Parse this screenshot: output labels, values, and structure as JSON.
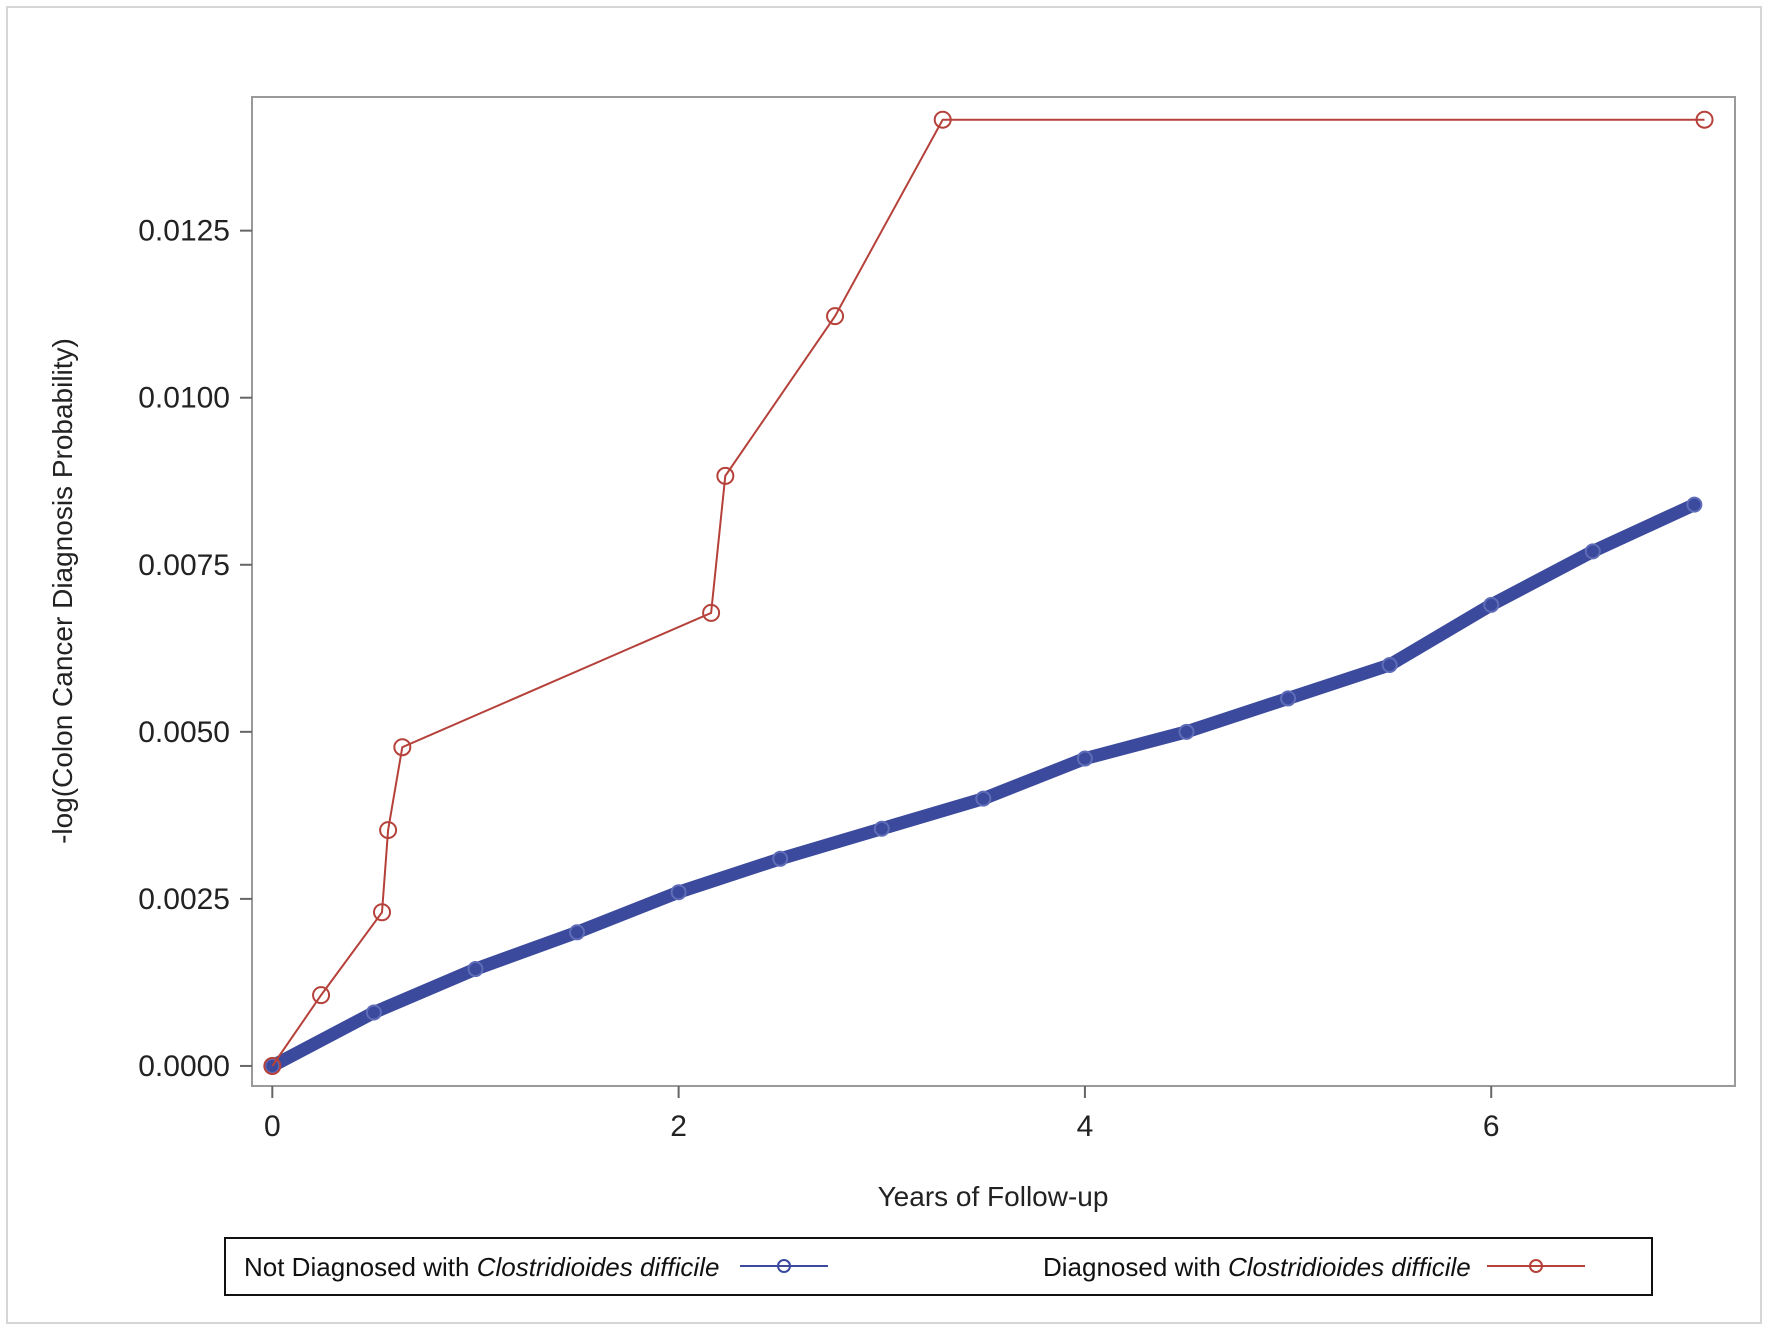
{
  "chart_data": {
    "type": "line",
    "xlabel": "Years of Follow-up",
    "ylabel": "-log(Colon Cancer Diagnosis Probability)",
    "xlim": [
      -0.1,
      7.2
    ],
    "ylim": [
      -0.0003,
      0.0145
    ],
    "xticks": [
      {
        "value": 0,
        "label": "0"
      },
      {
        "value": 2,
        "label": "2"
      },
      {
        "value": 4,
        "label": "4"
      },
      {
        "value": 6,
        "label": "6"
      }
    ],
    "yticks": [
      {
        "value": 0.0,
        "label": "0.0000"
      },
      {
        "value": 0.0025,
        "label": "0.0025"
      },
      {
        "value": 0.005,
        "label": "0.0050"
      },
      {
        "value": 0.0075,
        "label": "0.0075"
      },
      {
        "value": 0.01,
        "label": "0.0100"
      },
      {
        "value": 0.0125,
        "label": "0.0125"
      }
    ],
    "grid": false,
    "legend_position": "bottom",
    "series": [
      {
        "name_plain": "Not Diagnosed with ",
        "name_italic": "Clostridioides difficile",
        "color": "#3b4a9c",
        "marker": "circle",
        "style": "dense",
        "x": [
          0,
          0.5,
          1.0,
          1.5,
          2.0,
          2.5,
          3.0,
          3.5,
          4.0,
          4.5,
          5.0,
          5.5,
          6.0,
          6.5,
          7.0
        ],
        "y": [
          0,
          0.0008,
          0.00145,
          0.002,
          0.0026,
          0.0031,
          0.00355,
          0.004,
          0.0046,
          0.005,
          0.0055,
          0.006,
          0.0069,
          0.0077,
          0.0084
        ]
      },
      {
        "name_plain": "Diagnosed with ",
        "name_italic": "Clostridioides difficile",
        "color": "#b5413a",
        "marker": "circle",
        "style": "markers",
        "x": [
          0,
          0.24,
          0.54,
          0.57,
          0.64,
          2.16,
          2.23,
          2.77,
          3.3,
          7.05
        ],
        "y": [
          0,
          0.00106,
          0.0023,
          0.00353,
          0.00477,
          0.00678,
          0.00883,
          0.01122,
          0.01416,
          0.01416
        ]
      }
    ]
  }
}
